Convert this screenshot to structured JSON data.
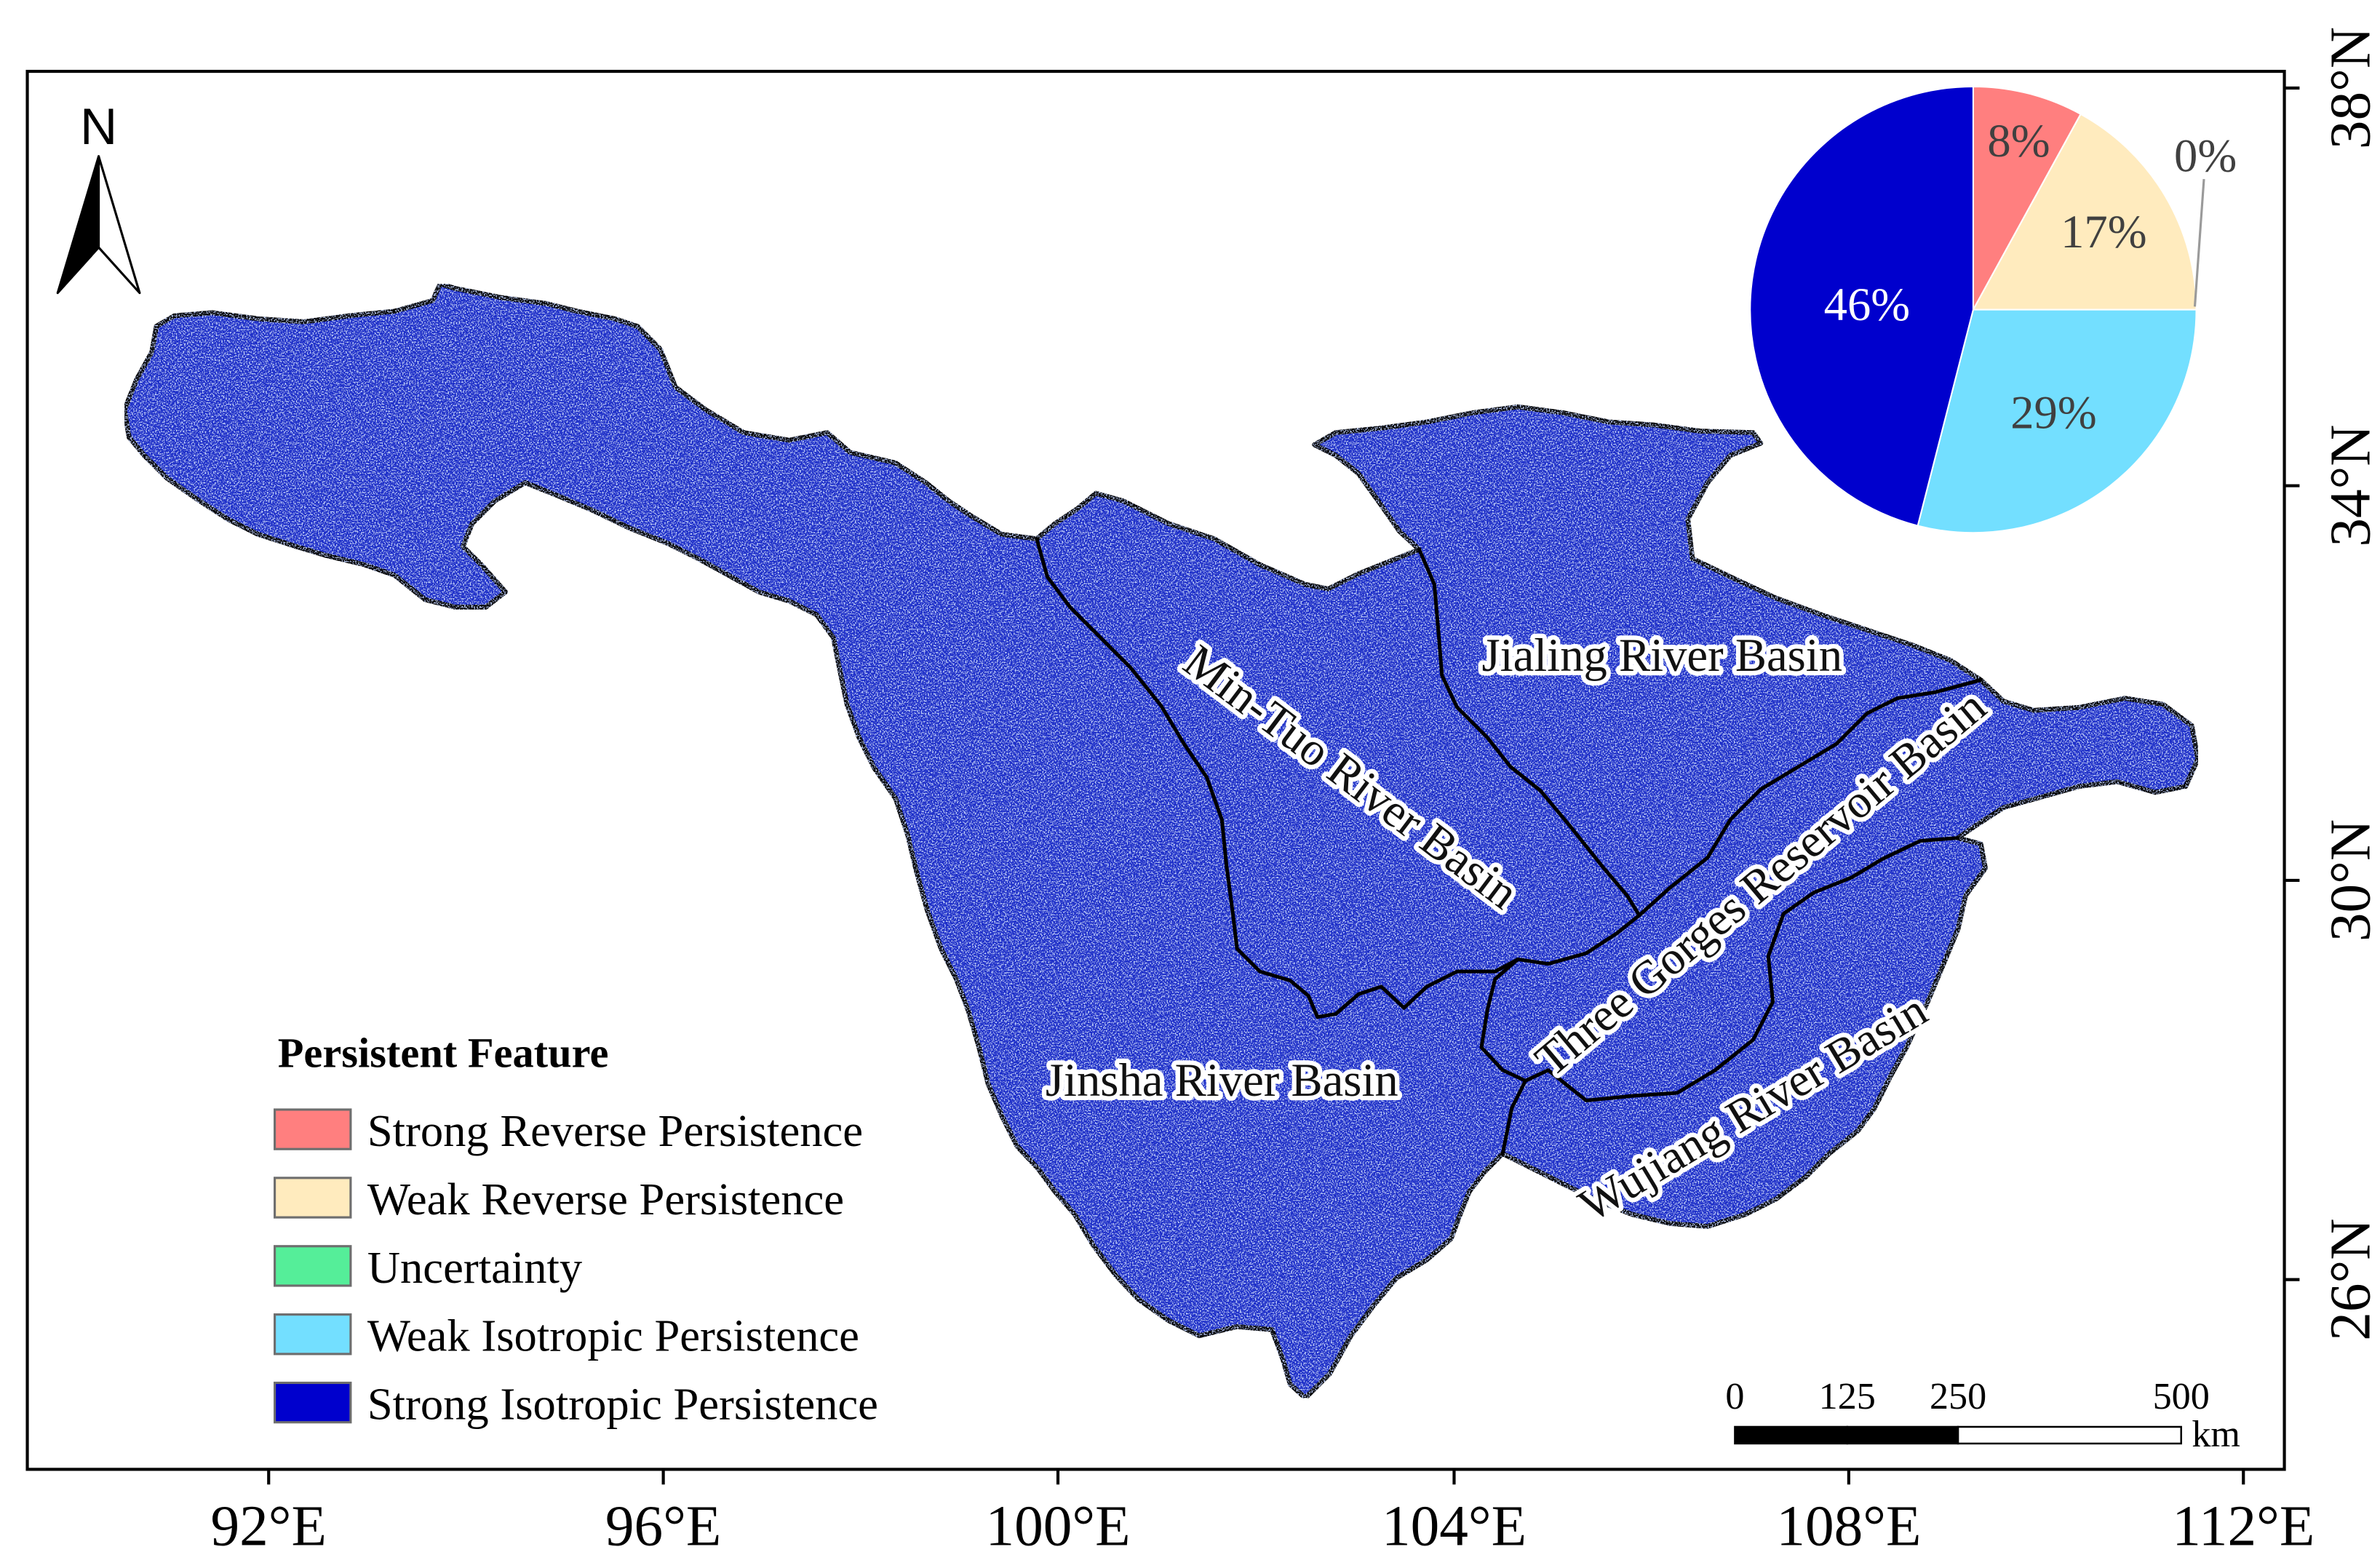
{
  "map": {
    "north_label": "N",
    "longitude_labels": [
      "92°E",
      "96°E",
      "100°E",
      "104°E",
      "108°E",
      "112°E"
    ],
    "latitude_labels": [
      "38°N",
      "34°N",
      "30°N",
      "26°N"
    ],
    "basins": {
      "jialing": "Jialing River Basin",
      "min_tuo": "Min-Tuo River Basin",
      "three_gorges": "Three Gorges Reservoir Basin",
      "wujiang": "Wujiang River Basin",
      "jinsha": "Jinsha River Basin"
    }
  },
  "legend": {
    "title": "Persistent Feature"
  },
  "scale_bar": {
    "ticks": [
      "0",
      "125",
      "250",
      "500"
    ],
    "unit": "km"
  },
  "chart_data": {
    "type": "pie",
    "categories": [
      "Strong Reverse Persistence",
      "Weak Reverse Persistence",
      "Uncertainty",
      "Weak Isotropic Persistence",
      "Strong Isotropic Persistence"
    ],
    "values": [
      8,
      17,
      0,
      29,
      46
    ],
    "labels": [
      "8%",
      "17%",
      "0%",
      "29%",
      "46%"
    ],
    "colors": [
      "#FF7F7F",
      "#FFEBBE",
      "#55EE99",
      "#73DFFF",
      "#0000CD"
    ]
  }
}
